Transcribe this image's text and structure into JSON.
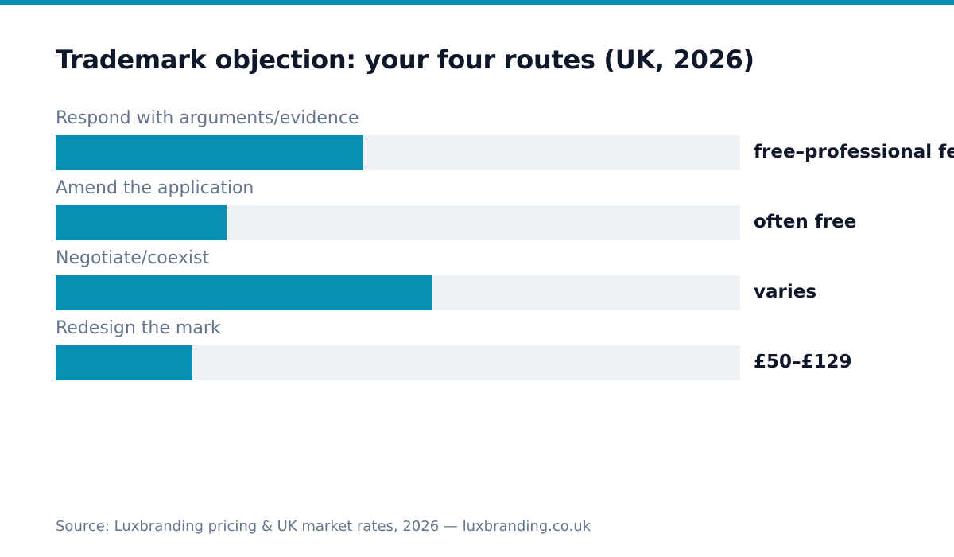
{
  "colors": {
    "accent": "#0891b2",
    "track": "#edf2f7",
    "title": "#0f172a",
    "muted": "#64748b"
  },
  "chart_data": {
    "type": "bar",
    "orientation": "horizontal",
    "title": "Trademark objection: your four routes (UK, 2026)",
    "xlabel": "",
    "ylabel": "",
    "xlim": [
      0,
      1
    ],
    "categories": [
      "Respond with arguments/evidence",
      "Amend the application",
      "Negotiate/coexist",
      "Redesign the mark"
    ],
    "values": [
      0.45,
      0.25,
      0.55,
      0.2
    ],
    "value_labels": [
      "free–professional fee",
      "often free",
      "varies",
      "£50–£129"
    ],
    "grid": false,
    "legend": "none"
  },
  "footer": {
    "source": "Source: Luxbranding pricing & UK market rates, 2026 — luxbranding.co.uk"
  }
}
